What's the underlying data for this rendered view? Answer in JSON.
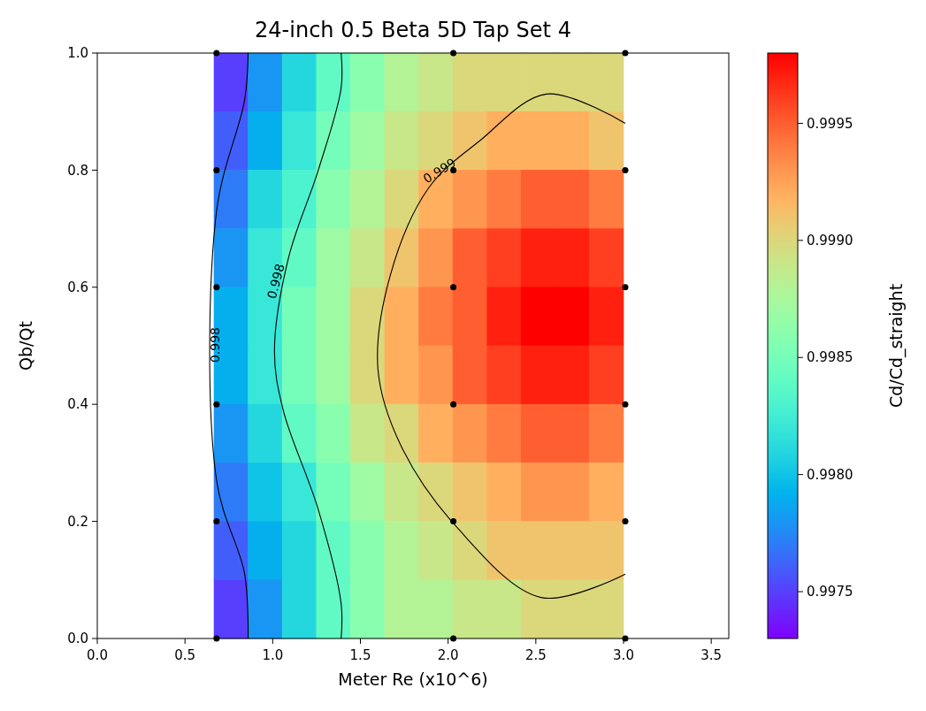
{
  "chart_data": [
    {
      "type": "heatmap",
      "clabel": "Cd/Cd_straight",
      "clim": [
        0.9973,
        0.9998
      ],
      "cticks": [
        0.9975,
        {
          "value": 0.998,
          "label": "0.9980"
        },
        0.9985,
        {
          "value": 0.999,
          "label": "0.9990"
        },
        0.9995
      ],
      "categories": [
        null,
        null,
        null,
        null,
        null,
        null,
        null,
        null,
        null,
        null,
        null,
        null
      ],
      "y_categories": [
        null,
        null,
        null,
        null,
        null,
        null,
        null,
        null,
        null,
        null
      ],
      "cells": [
        [
          0.9975,
          0.9978,
          0.9981,
          0.9984,
          0.9986,
          0.9988,
          0.9989,
          0.999,
          0.999,
          0.999,
          0.999,
          0.999
        ],
        [
          0.9976,
          0.9979,
          0.9982,
          0.9985,
          0.9987,
          0.9989,
          0.999,
          0.9991,
          0.9992,
          0.9992,
          0.9992,
          0.9991
        ],
        [
          0.9977,
          0.9981,
          0.9983,
          0.9986,
          0.9988,
          0.999,
          0.9992,
          0.9993,
          0.9994,
          0.9995,
          0.9995,
          0.9994
        ],
        [
          0.9978,
          0.9982,
          0.9984,
          0.9987,
          0.9989,
          0.9991,
          0.9993,
          0.9995,
          0.9996,
          0.9997,
          0.9997,
          0.9996
        ],
        [
          0.9979,
          0.9982,
          0.9985,
          0.9987,
          0.999,
          0.9992,
          0.9994,
          0.9995,
          0.9997,
          0.9998,
          0.9998,
          0.9997
        ],
        [
          0.9979,
          0.9982,
          0.9985,
          0.9987,
          0.999,
          0.9992,
          0.9993,
          0.9995,
          0.9996,
          0.9997,
          0.9997,
          0.9996
        ],
        [
          0.9978,
          0.9981,
          0.9984,
          0.9986,
          0.9989,
          0.999,
          0.9992,
          0.9993,
          0.9994,
          0.9995,
          0.9995,
          0.9994
        ],
        [
          0.9977,
          0.998,
          0.9982,
          0.9985,
          0.9987,
          0.9989,
          0.999,
          0.9991,
          0.9992,
          0.9993,
          0.9993,
          0.9992
        ],
        [
          0.9976,
          0.9979,
          0.9981,
          0.9984,
          0.9986,
          0.9988,
          0.9989,
          0.999,
          0.9991,
          0.9991,
          0.9991,
          0.9991
        ],
        [
          0.9975,
          0.9978,
          0.9981,
          0.9984,
          0.9986,
          0.9988,
          0.9988,
          0.9989,
          0.9989,
          0.999,
          0.999,
          0.999
        ]
      ]
    },
    {
      "type": "scatter",
      "title": "24-inch 0.5 Beta 5D Tap Set 4",
      "xlabel": "Meter Re (x10^6)",
      "ylabel": "Qb/Qt",
      "xlim": [
        0,
        3.6
      ],
      "xticks": [
        {
          "value": 0,
          "label": "0.0"
        },
        0.5,
        {
          "value": 1,
          "label": "1.0"
        },
        1.5,
        {
          "value": 2,
          "label": "2.0"
        },
        2.5,
        {
          "value": 3,
          "label": "3.0"
        },
        3.5
      ],
      "ylim": [
        0,
        1
      ],
      "yticks": [
        {
          "value": 0,
          "label": "0.0"
        },
        0.2,
        0.4,
        0.6,
        0.8,
        {
          "value": 1,
          "label": "1.0"
        }
      ],
      "series": [
        {
          "type": "line",
          "color": "#000000",
          "x": [
            0.86,
            0.84,
            0.68,
            0.68,
            0.84,
            0.86
          ],
          "values": [
            1,
            0.92,
            0.73,
            0.27,
            0.11,
            0
          ]
        },
        {
          "type": "line",
          "color": "#000000",
          "x": [
            1.39,
            1.39,
            1.26,
            1.09,
            1.01,
            1.06,
            1.26,
            1.39,
            1.39
          ],
          "values": [
            1,
            0.94,
            0.8,
            0.65,
            0.49,
            0.39,
            0.22,
            0.06,
            0
          ]
        },
        {
          "type": "line",
          "color": "#000000",
          "x": [
            3.01,
            2.56,
            2.18,
            1.89,
            1.67,
            1.6,
            1.73,
            2.05,
            2.53,
            3.01
          ],
          "values": [
            0.88,
            0.93,
            0.85,
            0.77,
            0.62,
            0.46,
            0.33,
            0.19,
            0.07,
            0.11
          ]
        },
        {
          "type": "scatter",
          "color": "#000000",
          "marker": "circle",
          "x": [
            0.68,
            0.68,
            0.68,
            0.68,
            0.68,
            0.68,
            2.03,
            2.03,
            2.03,
            2.03,
            2.03,
            2.03,
            3.01,
            3.01,
            3.01,
            3.01,
            3.01,
            3.01
          ],
          "values": [
            0,
            0.2,
            0.4,
            0.6,
            0.8,
            1,
            0,
            0.2,
            0.4,
            0.6,
            0.8,
            1,
            0,
            0.2,
            0.4,
            0.6,
            0.8,
            1
          ]
        }
      ],
      "annotations": [
        "0.999",
        "0.998",
        "0.998"
      ]
    }
  ]
}
